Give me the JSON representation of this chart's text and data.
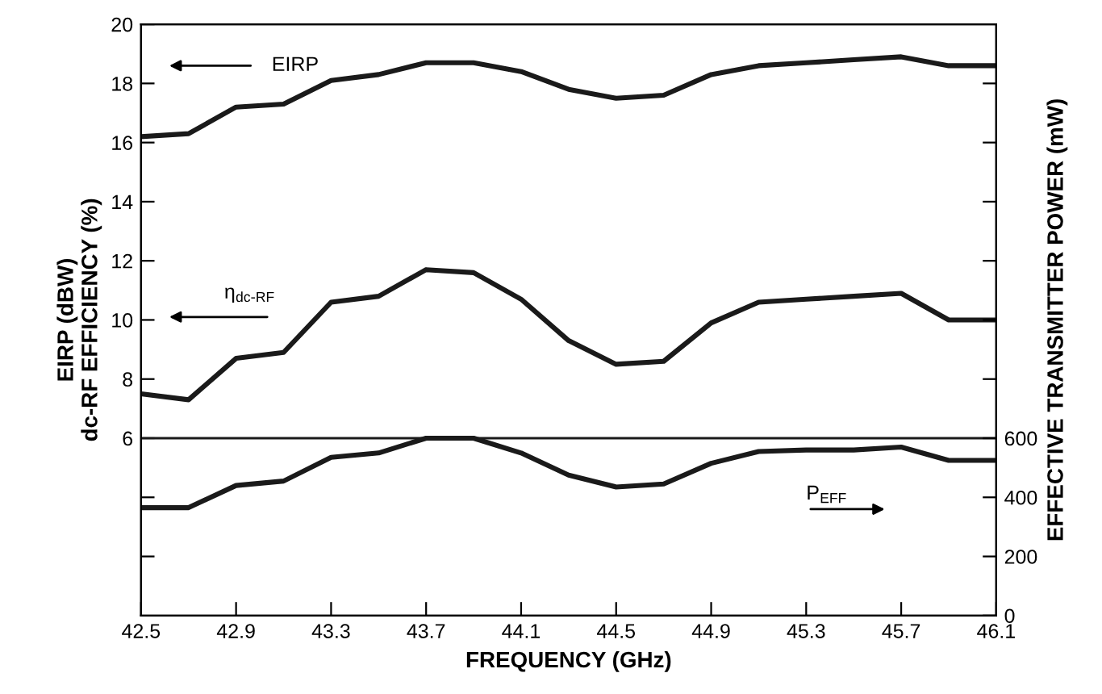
{
  "chart_data": {
    "type": "line",
    "xlabel": "FREQUENCY (GHz)",
    "ylabel": "EIRP (dBW)\ndc-RF EFFICIENCY (%)",
    "y2label": "EFFECTIVE TRANSMITTER POWER (mW)",
    "x": [
      42.5,
      42.7,
      42.9,
      43.1,
      43.3,
      43.5,
      43.7,
      43.9,
      44.1,
      44.3,
      44.5,
      44.7,
      44.9,
      45.1,
      45.3,
      45.5,
      45.7,
      45.9,
      46.1
    ],
    "series": [
      {
        "color": "#1a1a1a",
        "values": [
          16.2,
          16.3,
          17.2,
          17.3,
          18.1,
          18.3,
          18.7,
          18.7,
          18.4,
          17.8,
          17.5,
          17.6,
          18.3,
          18.6,
          18.7,
          18.8,
          18.9,
          18.6,
          18.6
        ]
      },
      {
        "color": "#1a1a1a",
        "values": [
          7.5,
          7.3,
          8.7,
          8.9,
          10.6,
          10.8,
          11.7,
          11.6,
          10.7,
          9.3,
          8.5,
          8.6,
          9.9,
          10.6,
          10.7,
          10.8,
          10.9,
          10.0,
          10.0
        ]
      },
      {
        "color": "#1a1a1a",
        "axis": "y2",
        "values": [
          365,
          365,
          440,
          455,
          535,
          550,
          600,
          600,
          550,
          475,
          435,
          445,
          515,
          555,
          560,
          560,
          570,
          525,
          525
        ]
      }
    ],
    "annotations": [
      "EIRP",
      "η$_{dc-RF}$",
      "P$_{EFF}$"
    ],
    "ref_lines": [
      {
        "axis": "y",
        "value": 6,
        "color": "#1a1a1a",
        "line_style": "solid"
      }
    ],
    "xlim": [
      42.5,
      46.1
    ],
    "xticks": [
      42.5,
      42.9,
      43.3,
      43.7,
      44.1,
      44.5,
      44.9,
      45.3,
      45.7,
      46.1
    ],
    "ylim": [
      0,
      20
    ],
    "yticks": [
      {
        "value": 2,
        "label": null
      },
      {
        "value": 4,
        "label": null
      },
      6,
      8,
      10,
      12,
      14,
      16,
      18,
      20
    ],
    "y2lim": [
      0,
      2000
    ],
    "y2ticks": [
      0,
      200,
      400,
      600,
      {
        "value": 800,
        "label": null
      },
      {
        "value": 1000,
        "label": null
      },
      {
        "value": 1200,
        "label": null
      },
      {
        "value": 1400,
        "label": null
      },
      {
        "value": 1600,
        "label": null
      },
      {
        "value": 1800,
        "label": null
      }
    ],
    "grid": false,
    "legend": false,
    "marker": "none",
    "line_style": "solid"
  }
}
